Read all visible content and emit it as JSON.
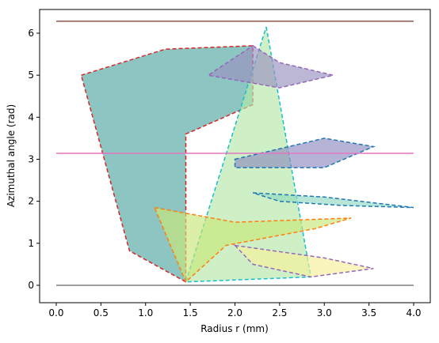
{
  "chart_data": {
    "type": "polygon",
    "xlabel": "Radius r (mm)",
    "ylabel": "Azimuthal angle (rad)",
    "xlim": [
      -0.186,
      4.186
    ],
    "ylim": [
      -0.414,
      6.564
    ],
    "xticks": [
      {
        "value": 0,
        "label": "0.0"
      },
      {
        "value": 0.5,
        "label": "0.5"
      },
      {
        "value": 1,
        "label": "1.0"
      },
      {
        "value": 1.5,
        "label": "1.5"
      },
      {
        "value": 2,
        "label": "2.0"
      },
      {
        "value": 2.5,
        "label": "2.5"
      },
      {
        "value": 3,
        "label": "3.0"
      },
      {
        "value": 3.5,
        "label": "3.5"
      },
      {
        "value": 4,
        "label": "4.0"
      }
    ],
    "yticks": [
      0,
      1,
      2,
      3,
      4,
      5,
      6
    ],
    "patches": [
      {
        "color": "#4fa6a0",
        "edgecolor": "#d62728",
        "x": [
          0.28,
          1.22,
          2.2,
          2.2,
          1.45,
          1.45,
          0.82
        ],
        "y": [
          5.0,
          5.62,
          5.7,
          4.3,
          3.6,
          0.08,
          0.82
        ]
      },
      {
        "color": "#b6e6a8",
        "edgecolor": "#17becf",
        "x": [
          2.35,
          2.85,
          1.45
        ],
        "y": [
          6.15,
          0.2,
          0.08
        ]
      },
      {
        "color": "#9a90c0",
        "edgecolor": "#9467bd",
        "x": [
          2.2,
          2.5,
          3.1,
          2.5,
          1.7
        ],
        "y": [
          5.7,
          5.3,
          5.0,
          4.7,
          5.0
        ]
      },
      {
        "color": "#8e8cc0",
        "edgecolor": "#1f77b4",
        "x": [
          2.0,
          3.0,
          3.55,
          3.0,
          2.0
        ],
        "y": [
          3.0,
          3.5,
          3.3,
          2.8,
          2.8
        ]
      },
      {
        "color": "#90d8c0",
        "edgecolor": "#1f77b4",
        "x": [
          2.2,
          3.0,
          4.0,
          3.2,
          2.5
        ],
        "y": [
          2.2,
          2.1,
          1.85,
          1.9,
          2.0
        ]
      },
      {
        "color": "#c8e67a",
        "edgecolor": "#ff7f0e",
        "x": [
          1.1,
          2.0,
          3.3,
          2.9,
          1.9,
          1.45
        ],
        "y": [
          1.85,
          1.5,
          1.6,
          1.35,
          0.95,
          0.08
        ]
      },
      {
        "color": "#f6f09a",
        "edgecolor": "#9467bd",
        "x": [
          2.0,
          3.0,
          3.55,
          2.85,
          2.2
        ],
        "y": [
          0.95,
          0.65,
          0.4,
          0.2,
          0.5
        ]
      }
    ],
    "lines": [
      {
        "color": "#7f7f7f",
        "x": [
          0,
          4
        ],
        "y": [
          0,
          0
        ]
      },
      {
        "color": "#e377c2",
        "x": [
          0,
          4
        ],
        "y": [
          3.14159,
          3.14159
        ]
      },
      {
        "color": "#8c564b",
        "x": [
          0,
          4
        ],
        "y": [
          6.28319,
          6.28319
        ]
      }
    ]
  }
}
